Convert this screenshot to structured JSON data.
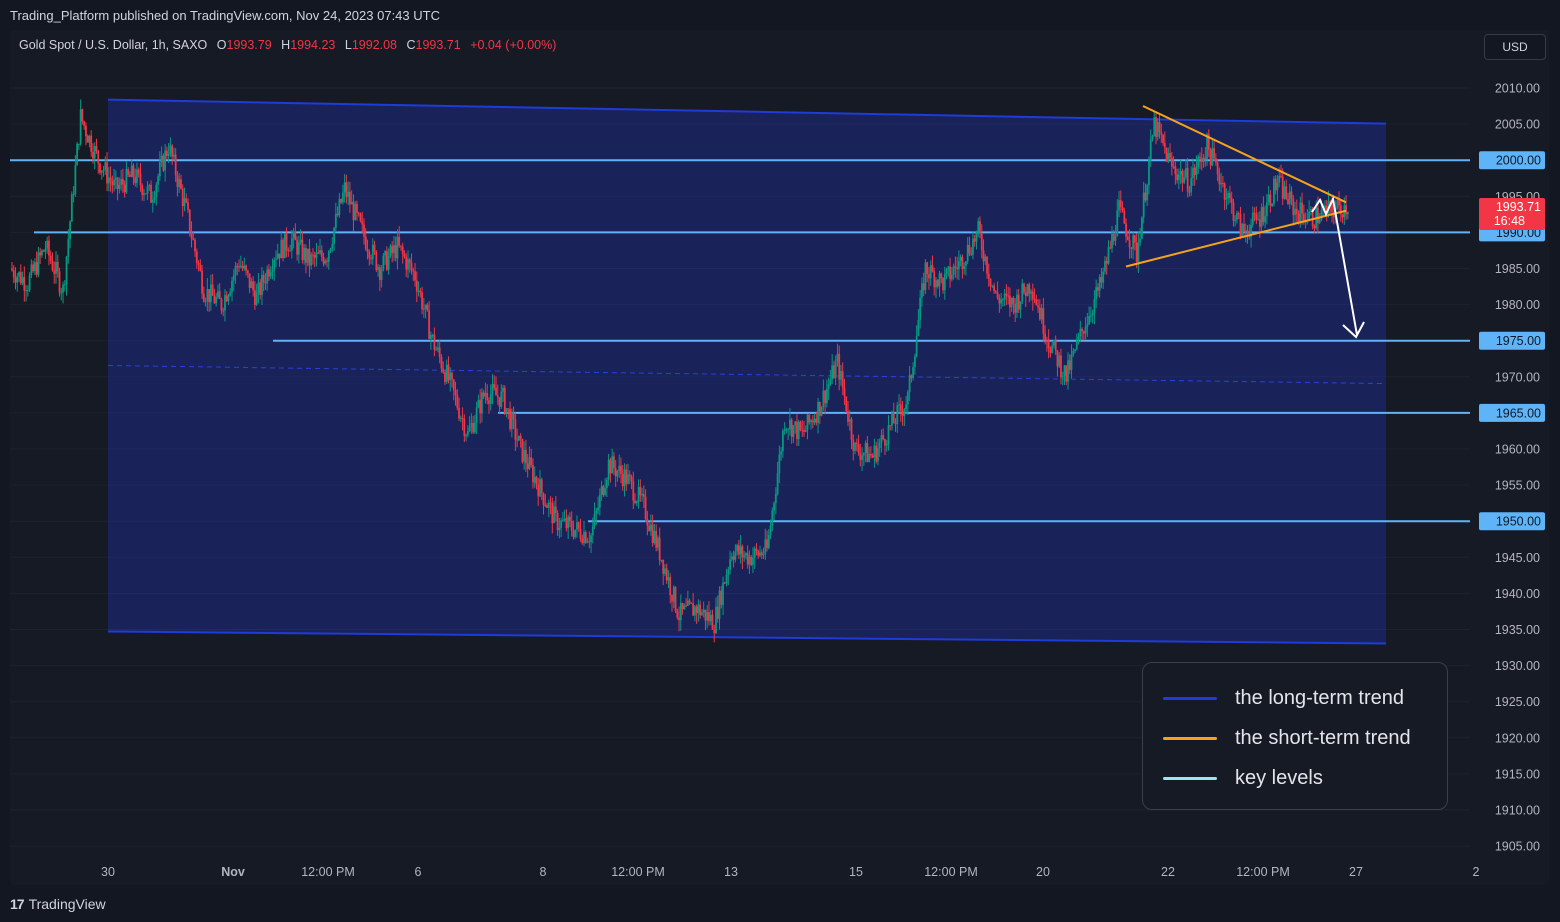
{
  "header": {
    "published": "Trading_Platform published on TradingView.com, Nov 24, 2023 07:43 UTC"
  },
  "symbol": {
    "name": "Gold Spot / U.S. Dollar, 1h, SAXO",
    "o_label": "O",
    "o": "1993.79",
    "h_label": "H",
    "h": "1994.23",
    "l_label": "L",
    "l": "1992.08",
    "c_label": "C",
    "c": "1993.71",
    "change": "+0.04 (+0.00%)"
  },
  "currency_button": "USD",
  "price_tag": {
    "price": "1993.71",
    "countdown": "16:48",
    "color": "#f23645"
  },
  "key_level_tags": [
    "2000.00",
    "1990.00",
    "1975.00",
    "1965.00",
    "1950.00"
  ],
  "legend": {
    "items": [
      {
        "label": "the long-term trend",
        "color": "#1f3bd9"
      },
      {
        "label": "the short-term trend",
        "color": "#f7a21b"
      },
      {
        "label": "key levels",
        "color": "#9fe3f5"
      }
    ]
  },
  "brand": {
    "logo": "17",
    "name": "TradingView"
  },
  "colors": {
    "up": "#089981",
    "down": "#f23645",
    "background": "#131722",
    "channel_fill": "#1a2463",
    "key_level": "#5fb4f7"
  },
  "chart_data": {
    "type": "candlestick",
    "title": "Gold Spot / U.S. Dollar, 1h, SAXO",
    "y_axis": {
      "ticks": [
        2010,
        2005,
        2000,
        1995,
        1990,
        1985,
        1980,
        1975,
        1970,
        1965,
        1960,
        1955,
        1950,
        1945,
        1940,
        1935,
        1930,
        1925,
        1920,
        1915,
        1910,
        1905
      ],
      "tick_labels": [
        "2010.00",
        "2005.00",
        "2000.00",
        "1995.00",
        "1990.00",
        "1985.00",
        "1980.00",
        "1975.00",
        "1970.00",
        "1965.00",
        "1960.00",
        "1955.00",
        "1950.00",
        "1945.00",
        "1940.00",
        "1935.00",
        "1930.00",
        "1925.00",
        "1920.00",
        "1915.00",
        "1910.00",
        "1905.00"
      ],
      "range": [
        1903,
        2012
      ]
    },
    "x_axis": {
      "tick_labels": [
        "30",
        "Nov",
        "12:00 PM",
        "6",
        "8",
        "12:00 PM",
        "13",
        "15",
        "12:00 PM",
        "20",
        "22",
        "12:00 PM",
        "27",
        "2"
      ]
    },
    "price_path": [
      {
        "t": 0,
        "p": 1985
      },
      {
        "t": 1,
        "p": 1983
      },
      {
        "t": 2,
        "p": 1988
      },
      {
        "t": 3,
        "p": 1982
      },
      {
        "t": 4,
        "p": 2006
      },
      {
        "t": 5,
        "p": 2000
      },
      {
        "t": 6,
        "p": 1996
      },
      {
        "t": 7,
        "p": 1998
      },
      {
        "t": 8,
        "p": 1995
      },
      {
        "t": 9,
        "p": 2002
      },
      {
        "t": 10,
        "p": 1993
      },
      {
        "t": 11,
        "p": 1982
      },
      {
        "t": 12,
        "p": 1980
      },
      {
        "t": 13,
        "p": 1986
      },
      {
        "t": 14,
        "p": 1981
      },
      {
        "t": 15,
        "p": 1987
      },
      {
        "t": 16,
        "p": 1989
      },
      {
        "t": 17,
        "p": 1986
      },
      {
        "t": 18,
        "p": 1987
      },
      {
        "t": 19,
        "p": 1996
      },
      {
        "t": 20,
        "p": 1990
      },
      {
        "t": 21,
        "p": 1985
      },
      {
        "t": 22,
        "p": 1988
      },
      {
        "t": 23,
        "p": 1984
      },
      {
        "t": 24,
        "p": 1975
      },
      {
        "t": 25,
        "p": 1969
      },
      {
        "t": 26,
        "p": 1962
      },
      {
        "t": 27,
        "p": 1968
      },
      {
        "t": 28,
        "p": 1967
      },
      {
        "t": 29,
        "p": 1960
      },
      {
        "t": 30,
        "p": 1955
      },
      {
        "t": 31,
        "p": 1950
      },
      {
        "t": 32,
        "p": 1949
      },
      {
        "t": 33,
        "p": 1948
      },
      {
        "t": 34,
        "p": 1958
      },
      {
        "t": 35,
        "p": 1956
      },
      {
        "t": 36,
        "p": 1952
      },
      {
        "t": 37,
        "p": 1945
      },
      {
        "t": 38,
        "p": 1937
      },
      {
        "t": 39,
        "p": 1938
      },
      {
        "t": 40,
        "p": 1936
      },
      {
        "t": 41,
        "p": 1946
      },
      {
        "t": 42,
        "p": 1945
      },
      {
        "t": 43,
        "p": 1946
      },
      {
        "t": 44,
        "p": 1964
      },
      {
        "t": 45,
        "p": 1962
      },
      {
        "t": 46,
        "p": 1966
      },
      {
        "t": 47,
        "p": 1972
      },
      {
        "t": 48,
        "p": 1960
      },
      {
        "t": 49,
        "p": 1959
      },
      {
        "t": 50,
        "p": 1963
      },
      {
        "t": 51,
        "p": 1967
      },
      {
        "t": 52,
        "p": 1985
      },
      {
        "t": 53,
        "p": 1983
      },
      {
        "t": 54,
        "p": 1986
      },
      {
        "t": 55,
        "p": 1990
      },
      {
        "t": 56,
        "p": 1981
      },
      {
        "t": 57,
        "p": 1980
      },
      {
        "t": 58,
        "p": 1983
      },
      {
        "t": 59,
        "p": 1975
      },
      {
        "t": 60,
        "p": 1970
      },
      {
        "t": 61,
        "p": 1977
      },
      {
        "t": 62,
        "p": 1983
      },
      {
        "t": 63,
        "p": 1993
      },
      {
        "t": 64,
        "p": 1987
      },
      {
        "t": 65,
        "p": 2005
      },
      {
        "t": 66,
        "p": 1999
      },
      {
        "t": 67,
        "p": 1997
      },
      {
        "t": 68,
        "p": 2002
      },
      {
        "t": 69,
        "p": 1996
      },
      {
        "t": 70,
        "p": 1990
      },
      {
        "t": 71,
        "p": 1992
      },
      {
        "t": 72,
        "p": 1997
      },
      {
        "t": 73,
        "p": 1993
      },
      {
        "t": 74,
        "p": 1992
      },
      {
        "t": 75,
        "p": 1993
      },
      {
        "t": 76,
        "p": 1993.71
      }
    ],
    "drawings": {
      "long_term_channel_upper": [
        [
          0,
          2009.5
        ],
        [
          76,
          2007
        ]
      ],
      "long_term_channel_lower": [
        [
          0,
          1937.5
        ],
        [
          76,
          1935
        ]
      ],
      "short_term_triangle_upper": [
        [
          65,
          2007.5
        ],
        [
          76,
          1995
        ]
      ],
      "short_term_triangle_lower": [
        [
          65,
          1985
        ],
        [
          76,
          1993
        ]
      ],
      "key_levels": [
        2000,
        1990,
        1975,
        1965,
        1950
      ],
      "projected_target": 1975
    }
  }
}
